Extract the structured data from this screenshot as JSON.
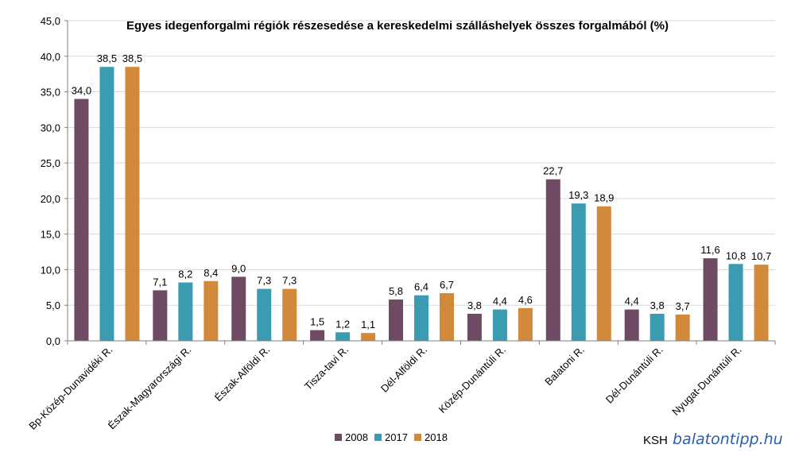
{
  "chart_data": {
    "type": "bar",
    "title": "Egyes idegenforgalmi régiók részesedése a kereskedelmi szálláshelyek összes forgalmából (%)",
    "categories": [
      "Bp-Közép-Dunavidéki R.",
      "Észak-Magyarországi R.",
      "Észak-Alföldi R.",
      "Tisza-tavi R.",
      "Dél-Alföldi R.",
      "Közép-Dunántúli R.",
      "Balatoni R.",
      "Dél-Dunántúli R.",
      "Nyugat-Dunántúli R."
    ],
    "series": [
      {
        "name": "2008",
        "color": "#6e4a64",
        "values": [
          34.0,
          7.1,
          9.0,
          1.5,
          5.8,
          3.8,
          22.7,
          4.4,
          11.6
        ],
        "labels": [
          "34,0",
          "7,1",
          "9,0",
          "1,5",
          "5,8",
          "3,8",
          "22,7",
          "4,4",
          "11,6"
        ]
      },
      {
        "name": "2017",
        "color": "#3b9bb0",
        "values": [
          38.5,
          8.2,
          7.3,
          1.2,
          6.4,
          4.4,
          19.3,
          3.8,
          10.8
        ],
        "labels": [
          "38,5",
          "8,2",
          "7,3",
          "1,2",
          "6,4",
          "4,4",
          "19,3",
          "3,8",
          "10,8"
        ]
      },
      {
        "name": "2018",
        "color": "#d3893a",
        "values": [
          38.5,
          8.4,
          7.3,
          1.1,
          6.7,
          4.6,
          18.9,
          3.7,
          10.7
        ],
        "labels": [
          "38,5",
          "8,4",
          "7,3",
          "1,1",
          "6,7",
          "4,6",
          "18,9",
          "3,7",
          "10,7"
        ]
      }
    ],
    "ylim": [
      0,
      45
    ],
    "yticks": [
      0,
      5,
      10,
      15,
      20,
      25,
      30,
      35,
      40,
      45
    ],
    "ytick_labels": [
      "0,0",
      "5,0",
      "10,0",
      "15,0",
      "20,0",
      "25,0",
      "30,0",
      "35,0",
      "40,0",
      "45,0"
    ],
    "grid": true,
    "legend_position": "bottom"
  },
  "source": {
    "ksh": "KSH",
    "site": "balatontipp.hu"
  }
}
